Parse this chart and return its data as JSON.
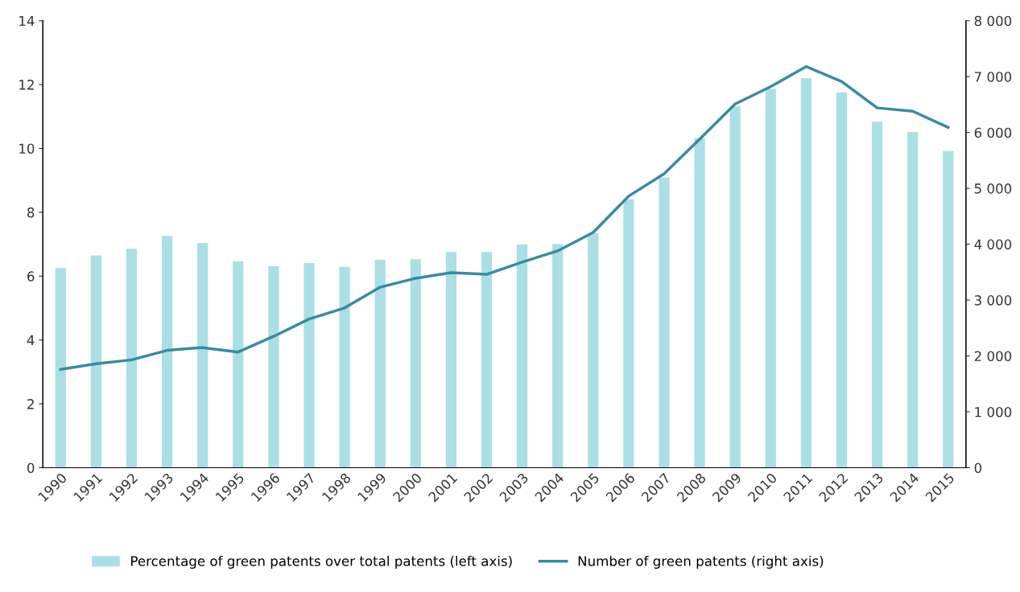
{
  "chart_data": {
    "type": "bar",
    "categories": [
      "1990",
      "1991",
      "1992",
      "1993",
      "1994",
      "1995",
      "1996",
      "1997",
      "1998",
      "1999",
      "2000",
      "2001",
      "2002",
      "2003",
      "2004",
      "2005",
      "2006",
      "2007",
      "2008",
      "2009",
      "2010",
      "2011",
      "2012",
      "2013",
      "2014",
      "2015"
    ],
    "series": [
      {
        "name": "Percentage of green patents over total patents (left axis)",
        "color": "#abdfe6",
        "values": [
          6.25,
          6.65,
          6.86,
          7.26,
          7.04,
          6.46,
          6.31,
          6.41,
          6.29,
          6.51,
          6.53,
          6.76,
          6.76,
          6.99,
          7.01,
          7.34,
          8.41,
          9.09,
          10.32,
          11.32,
          11.87,
          12.2,
          11.75,
          10.84,
          10.52,
          9.92
        ]
      },
      {
        "name": "Number of green patents (right axis)",
        "color": "#3a8aa0",
        "type": "line",
        "axis": "y2",
        "values": [
          1760,
          1860,
          1930,
          2100,
          2150,
          2070,
          2350,
          2660,
          2860,
          3230,
          3390,
          3490,
          3460,
          3680,
          3880,
          4210,
          4860,
          5260,
          5880,
          6510,
          6820,
          7180,
          6910,
          6440,
          6380,
          6090
        ]
      }
    ],
    "ylim": [
      0,
      14
    ],
    "yticks": [
      0,
      2,
      4,
      6,
      8,
      10,
      12,
      14
    ],
    "y2lim": [
      0,
      8000
    ],
    "y2ticks": [
      0,
      {
        "value": 1000,
        "label": "1 000"
      },
      {
        "value": 2000,
        "label": "2 000"
      },
      {
        "value": 3000,
        "label": "3 000"
      },
      {
        "value": 4000,
        "label": "4 000"
      },
      {
        "value": 5000,
        "label": "5 000"
      },
      {
        "value": 6000,
        "label": "6 000"
      },
      {
        "value": 7000,
        "label": "7 000"
      },
      {
        "value": 8000,
        "label": "8 000"
      }
    ],
    "grid": false,
    "legend": "bottom",
    "marker": "none",
    "line_style": "solid"
  }
}
